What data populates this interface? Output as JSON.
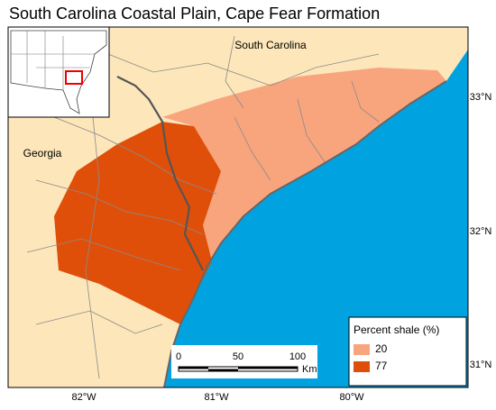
{
  "title": "South Carolina Coastal Plain, Cape Fear Formation",
  "places": [
    "South Carolina",
    "Georgia"
  ],
  "latitude_labels": [
    "33°N",
    "32°N",
    "31°N"
  ],
  "longitude_labels": [
    "82°W",
    "81°W",
    "80°W"
  ],
  "legend": {
    "title": "Percent shale (%)",
    "items": [
      {
        "label": "20",
        "color": "#f8a57e"
      },
      {
        "label": "77",
        "color": "#e04f0a"
      }
    ]
  },
  "scale_bar": {
    "labels": [
      "0",
      "50",
      "100"
    ],
    "unit": "Km"
  }
}
